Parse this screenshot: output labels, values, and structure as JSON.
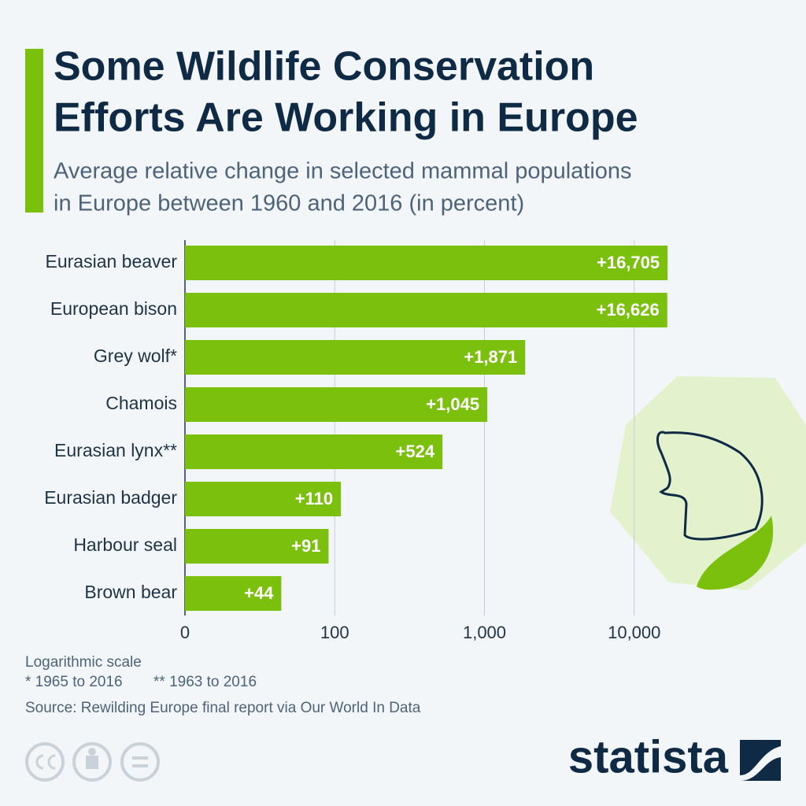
{
  "chart_data": {
    "type": "bar",
    "orientation": "horizontal",
    "title": [
      "Some Wildlife Conservation",
      "Efforts Are Working in Europe"
    ],
    "subtitle": [
      "Average relative change in selected mammal populations",
      "in Europe between 1960 and 2016 (in percent)"
    ],
    "categories": [
      "Eurasian beaver",
      "European bison",
      "Grey wolf*",
      "Chamois",
      "Eurasian lynx**",
      "Eurasian badger",
      "Harbour seal",
      "Brown bear"
    ],
    "values": [
      16705,
      16626,
      1871,
      1045,
      524,
      110,
      91,
      44
    ],
    "value_labels": [
      "+16,705",
      "+16,626",
      "+1,871",
      "+1,045",
      "+524",
      "+110",
      "+91",
      "+44"
    ],
    "color": "#7cc00e",
    "log_scale": true,
    "xlim": [
      10,
      100000
    ],
    "xticks": [
      {
        "value": 10,
        "label": "0"
      },
      100,
      {
        "value": 1000,
        "label": "1,000"
      },
      {
        "value": 10000,
        "label": "10,000"
      }
    ],
    "grid": true,
    "notes": [
      "Logarithmic scale",
      "* 1965 to 2016",
      "** 1963 to 2016"
    ],
    "source": "Source: Rewilding Europe final report via Our World In Data",
    "logo": "statista"
  }
}
